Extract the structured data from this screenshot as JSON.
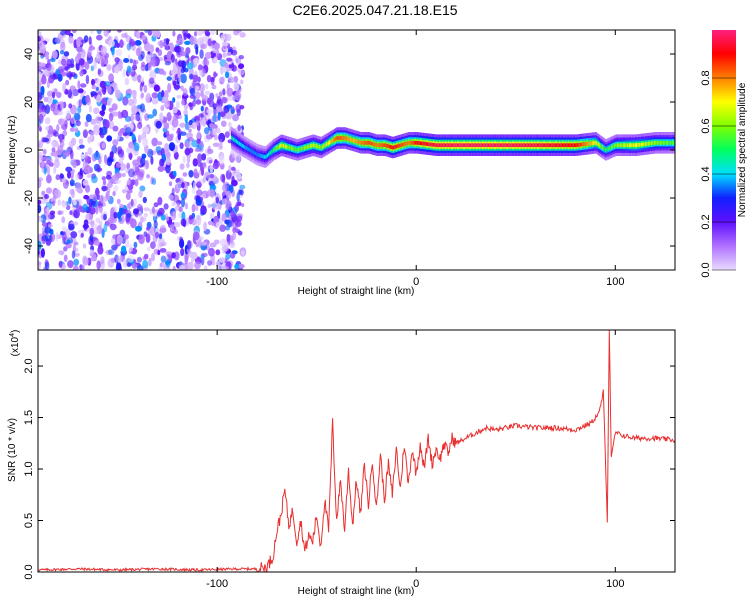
{
  "title": "C2E6.2025.047.21.18.E15",
  "chart_data": [
    {
      "type": "heatmap",
      "xlabel": "Height of straight line (km)",
      "ylabel": "Frequency (Hz)",
      "xlim": [
        -190,
        130
      ],
      "ylim": [
        -50,
        50
      ],
      "x_ticks": [
        -100,
        0,
        100
      ],
      "x_tick_labels": [
        "-100",
        "0",
        "100"
      ],
      "y_ticks": [
        -40,
        -20,
        0,
        20,
        40
      ],
      "y_tick_labels": [
        "-40",
        "-20",
        "0",
        "20",
        "40"
      ],
      "colorbar": {
        "label": "Normalized spectral amplitude",
        "range": [
          0,
          1
        ],
        "ticks": [
          0.0,
          0.2,
          0.4,
          0.6,
          0.8
        ],
        "tick_labels": [
          "0.0",
          "0.2",
          "0.4",
          "0.6",
          "0.8"
        ],
        "colors": [
          "#e8dcff",
          "#b070ff",
          "#6010ff",
          "#1020ff",
          "#00e0ff",
          "#00ff60",
          "#80ff00",
          "#ffff00",
          "#ff8000",
          "#ff0000",
          "#ff2080"
        ]
      },
      "noise_region": {
        "x_range": [
          -190,
          -87
        ],
        "amplitude_range": [
          0.0,
          0.15
        ]
      },
      "ridge": {
        "x": [
          -93,
          -88,
          -84,
          -80,
          -76,
          -72,
          -68,
          -64,
          -60,
          -56,
          -52,
          -48,
          -44,
          -40,
          -36,
          -32,
          -28,
          -24,
          -20,
          -16,
          -12,
          -8,
          -4,
          0,
          10,
          20,
          40,
          60,
          80,
          90,
          95,
          100,
          110,
          120,
          130
        ],
        "frequency": [
          5,
          2,
          0,
          -2,
          -3,
          0,
          2,
          1,
          0,
          1,
          2,
          1,
          3,
          5,
          5,
          4,
          3,
          3,
          2,
          2,
          1,
          2,
          3,
          3,
          2,
          2,
          2,
          2,
          2,
          3,
          0,
          2,
          2,
          3,
          3
        ],
        "amplitude": [
          0.45,
          0.4,
          0.35,
          0.35,
          0.4,
          0.5,
          0.7,
          0.6,
          0.55,
          0.6,
          0.65,
          0.6,
          0.7,
          0.85,
          0.8,
          0.75,
          0.8,
          0.85,
          0.8,
          0.85,
          0.9,
          0.85,
          0.8,
          0.9,
          0.95,
          0.97,
          0.97,
          0.95,
          0.9,
          0.7,
          0.5,
          0.6,
          0.7,
          0.6,
          0.55
        ]
      }
    },
    {
      "type": "line",
      "xlabel": "Height of straight line (km)",
      "ylabel": "SNR (10 * v/v)",
      "y_multiplier": "(x10",
      "y_multiplier_exp": "4",
      "y_multiplier_close": ")",
      "xlim": [
        -190,
        130
      ],
      "ylim": [
        0,
        2.35
      ],
      "x_ticks": [
        -100,
        0,
        100
      ],
      "x_tick_labels": [
        "-100",
        "0",
        "100"
      ],
      "y_ticks": [
        0.0,
        0.5,
        1.0,
        1.5,
        2.0
      ],
      "y_tick_labels": [
        "0.0",
        "0.5",
        "1.0",
        "1.5",
        "2.0"
      ],
      "color": "#e83030",
      "series": [
        {
          "x": [
            -190,
            -170,
            -150,
            -130,
            -110,
            -90,
            -80,
            -75,
            -72,
            -70,
            -68,
            -66,
            -64,
            -62,
            -60,
            -58,
            -56,
            -54,
            -52,
            -50,
            -48,
            -46,
            -44,
            -42,
            -40,
            -38,
            -36,
            -34,
            -32,
            -30,
            -28,
            -26,
            -24,
            -22,
            -20,
            -18,
            -16,
            -14,
            -12,
            -10,
            -8,
            -6,
            -4,
            -2,
            0,
            2,
            4,
            6,
            8,
            10,
            12,
            14,
            16,
            18,
            20,
            25,
            30,
            35,
            40,
            50,
            60,
            70,
            80,
            88,
            92,
            94,
            96,
            97,
            98,
            100,
            105,
            110,
            120,
            130
          ],
          "y": [
            0.02,
            0.03,
            0.02,
            0.03,
            0.02,
            0.03,
            0.03,
            0.05,
            0.15,
            0.4,
            0.55,
            0.8,
            0.45,
            0.6,
            0.3,
            0.5,
            0.2,
            0.35,
            0.3,
            0.55,
            0.25,
            0.7,
            0.4,
            1.45,
            0.5,
            0.9,
            0.4,
            1.0,
            0.45,
            0.9,
            0.55,
            1.05,
            0.65,
            1.1,
            0.6,
            1.15,
            0.7,
            1.05,
            0.75,
            1.2,
            0.8,
            1.25,
            0.85,
            1.2,
            0.95,
            1.25,
            1.0,
            1.3,
            1.05,
            1.2,
            1.1,
            1.25,
            1.15,
            1.3,
            1.25,
            1.3,
            1.35,
            1.4,
            1.38,
            1.42,
            1.4,
            1.4,
            1.38,
            1.45,
            1.55,
            1.75,
            0.5,
            2.35,
            1.1,
            1.35,
            1.32,
            1.3,
            1.3,
            1.28
          ]
        }
      ]
    }
  ]
}
